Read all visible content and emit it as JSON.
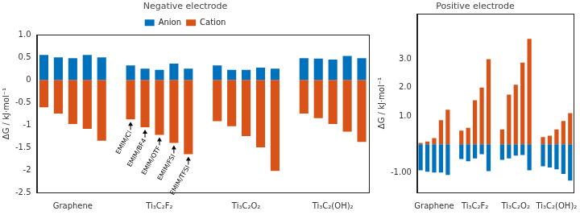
{
  "chart_data": [
    {
      "type": "bar",
      "title": "Negative electrode",
      "y_label": "ΔG / kJ·mol⁻¹",
      "categories": [
        null,
        null,
        "Graphene",
        null,
        null,
        null,
        null,
        null,
        "Ti₃C₂F₂",
        null,
        null,
        null,
        null,
        null,
        "Ti₃C₂O₂",
        null,
        null,
        null,
        null,
        null,
        "Ti₃C₂(OH)₂",
        null,
        null
      ],
      "series": [
        {
          "name": "Anion",
          "color": "#0072bd",
          "values": [
            0.55,
            0.5,
            0.48,
            0.55,
            0.5,
            null,
            0.32,
            0.25,
            0.22,
            0.36,
            0.25,
            null,
            0.32,
            0.22,
            0.22,
            0.27,
            0.25,
            null,
            0.48,
            0.47,
            0.45,
            0.53,
            0.48
          ]
        },
        {
          "name": "Cation",
          "color": "#d95319",
          "values": [
            -0.61,
            -0.75,
            -0.98,
            -1.09,
            -1.35,
            null,
            -0.88,
            -1.05,
            -1.22,
            -1.4,
            -1.65,
            null,
            -0.92,
            -1.03,
            -1.25,
            -1.5,
            -2.02,
            null,
            -0.75,
            -0.85,
            -0.98,
            -1.15,
            -1.38
          ]
        }
      ],
      "ylim": [
        -2.5,
        1
      ],
      "yticks": [
        -2.5,
        -2,
        -1.5,
        -1,
        -0.5,
        0,
        0.5,
        {
          "value": 1,
          "label": "1.0"
        }
      ],
      "stacked": true,
      "grid": false,
      "legend": "top",
      "annotations": [
        {
          "text": "EMIM/Cl",
          "series": "Cation",
          "index": 6
        },
        {
          "text": "EMIM/BF4",
          "series": "Cation",
          "index": 7
        },
        {
          "text": "EMIM/OTF",
          "series": "Cation",
          "index": 8
        },
        {
          "text": "EMIM/FSI",
          "series": "Cation",
          "index": 9
        },
        {
          "text": "EMIM/TFSI",
          "series": "Cation",
          "index": 10
        }
      ]
    },
    {
      "type": "bar",
      "title": "Positive electrode",
      "y_label": "ΔG / kJ·mol⁻¹",
      "categories": [
        null,
        null,
        "Graphene",
        null,
        null,
        null,
        null,
        null,
        "Ti₃C₂F₂",
        null,
        null,
        null,
        null,
        null,
        "Ti₃C₂O₂",
        null,
        null,
        null,
        null,
        null,
        "Ti₃C₂(OH)₂",
        null,
        null
      ],
      "series": [
        {
          "name": "Anion",
          "color": "#0072bd",
          "values": [
            -0.92,
            -0.97,
            -1.0,
            -1.0,
            -1.08,
            null,
            -0.52,
            -0.6,
            -0.5,
            -0.35,
            -0.95,
            null,
            -0.55,
            -0.5,
            -0.4,
            -0.38,
            -0.92,
            null,
            -0.78,
            -0.82,
            -0.88,
            -1.05,
            -1.28
          ]
        },
        {
          "name": "Cation",
          "color": "#d95319",
          "values": [
            0.05,
            0.1,
            0.22,
            0.85,
            1.22,
            null,
            0.48,
            0.58,
            1.55,
            2.0,
            3.0,
            null,
            0.52,
            1.75,
            2.1,
            2.88,
            3.72,
            null,
            0.25,
            0.3,
            0.52,
            0.82,
            1.1
          ]
        }
      ],
      "ylim": [
        -1.7,
        4.6
      ],
      "yticks": [
        {
          "value": -1,
          "label": "-1.00"
        },
        {
          "value": 1,
          "label": "1.0"
        },
        {
          "value": 2,
          "label": "2.0"
        },
        {
          "value": 3,
          "label": "3.0"
        }
      ],
      "stacked": true,
      "grid": false,
      "legend": false
    }
  ]
}
